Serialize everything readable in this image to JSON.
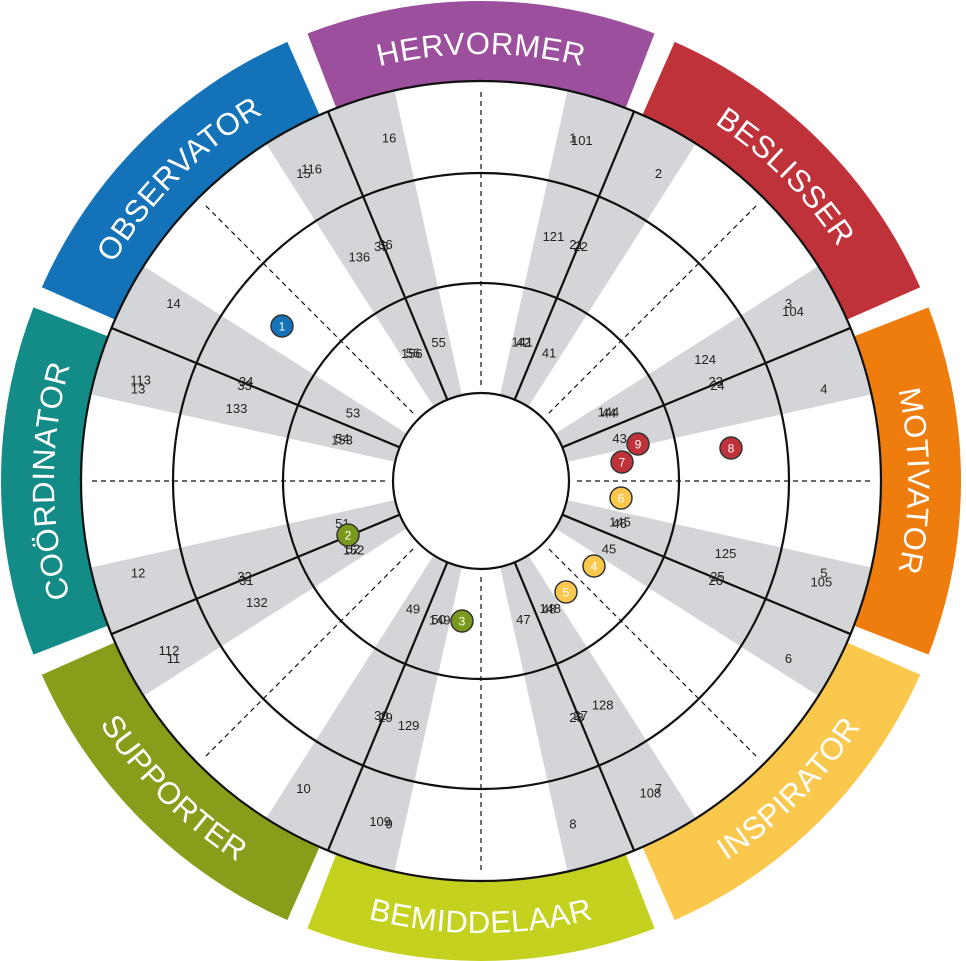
{
  "colors": {
    "gray_band": "#d4d5d8",
    "line": "#111111",
    "background": "#ffffff"
  },
  "outer_segments": [
    {
      "id": "hervormer",
      "label": "HERVORMER",
      "color": "#9b4f9c"
    },
    {
      "id": "beslisser",
      "label": "BESLISSER",
      "color": "#c0323a"
    },
    {
      "id": "motivator",
      "label": "MOTIVATOR",
      "color": "#ee7d0d"
    },
    {
      "id": "inspirator",
      "label": "INSPIRATOR",
      "color": "#fbc84e"
    },
    {
      "id": "bemiddelaar",
      "label": "BEMIDDELAAR",
      "color": "#c4d11e"
    },
    {
      "id": "supporter",
      "label": "SUPPORTER",
      "color": "#8a9d1a"
    },
    {
      "id": "coordinator",
      "label": "COÖRDINATOR",
      "color": "#138b86"
    },
    {
      "id": "observator",
      "label": "OBSERVATOR",
      "color": "#1473b8"
    }
  ],
  "ring_numbers": {
    "outer": [
      "1",
      "2",
      "3",
      "4",
      "5",
      "6",
      "7",
      "8",
      "9",
      "10",
      "11",
      "12",
      "13",
      "14",
      "15",
      "16"
    ],
    "middle": [
      "21",
      "22",
      "23",
      "24",
      "25",
      "26",
      "27",
      "28",
      "29",
      "30",
      "31",
      "32",
      "33",
      "34",
      "35",
      "36"
    ],
    "inner": [
      "41",
      "42",
      "43",
      "44",
      "45",
      "46",
      "47",
      "48",
      "49",
      "50",
      "51",
      "52",
      "53",
      "54",
      "55",
      "56"
    ]
  },
  "band_numbers": {
    "outer": [
      "101",
      "104",
      "105",
      "108",
      "109",
      "112",
      "113",
      "116"
    ],
    "middle": [
      "121",
      "124",
      "125",
      "128",
      "129",
      "132",
      "133",
      "136"
    ],
    "inner": [
      "141",
      "144",
      "145",
      "148",
      "149",
      "152",
      "153",
      "156"
    ]
  },
  "markers": [
    {
      "label": "1",
      "color": "#1473b8"
    },
    {
      "label": "2",
      "color": "#7a9a1e"
    },
    {
      "label": "3",
      "color": "#7a9a1e"
    },
    {
      "label": "4",
      "color": "#fbc84e"
    },
    {
      "label": "5",
      "color": "#fbc84e"
    },
    {
      "label": "6",
      "color": "#fbc84e"
    },
    {
      "label": "7",
      "color": "#c0323a"
    },
    {
      "label": "8",
      "color": "#c0323a"
    },
    {
      "label": "9",
      "color": "#c0323a"
    }
  ]
}
